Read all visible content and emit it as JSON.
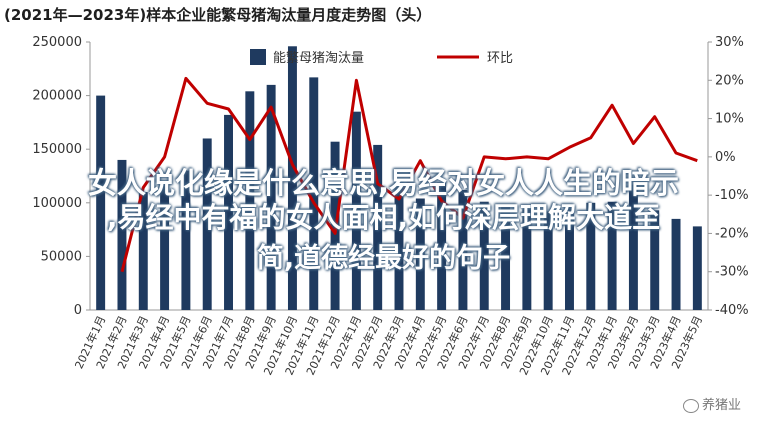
{
  "chart_data": {
    "type": "bar+line",
    "title": "(2021年—2023年)样本企业能繁母猪淘汰量月度走势图（头）",
    "categories": [
      "2021年1月",
      "2021年2月",
      "2021年3月",
      "2021年4月",
      "2021年5月",
      "2021年6月",
      "2021年7月",
      "2021年8月",
      "2021年9月",
      "2021年10月",
      "2021年11月",
      "2021年12月",
      "2022年1月",
      "2022年2月",
      "2022年3月",
      "2022年4月",
      "2022年5月",
      "2022年6月",
      "2022年7月",
      "2022年8月",
      "2022年9月",
      "2022年10月",
      "2022年11月",
      "2022年12月",
      "2023年1月",
      "2023年2月",
      "2023年3月",
      "2023年4月",
      "2023年5月"
    ],
    "series": [
      {
        "name": "能繁母猪淘汰量",
        "axis": "left",
        "color": "#1f3a5f",
        "values": [
          200000,
          140000,
          110000,
          118000,
          130000,
          160000,
          182000,
          204000,
          210000,
          246000,
          217000,
          157000,
          185000,
          154000,
          120000,
          104000,
          119000,
          112000,
          101000,
          98000,
          94000,
          92000,
          96000,
          100000,
          101000,
          117000,
          93000,
          85000,
          78000
        ]
      },
      {
        "name": "环比",
        "axis": "right",
        "color": "#c00000",
        "values": [
          null,
          -30,
          -8,
          0,
          20.5,
          14,
          12.5,
          4.5,
          13,
          -2,
          -12,
          -20,
          20,
          -7,
          -11,
          -1,
          -11.5,
          -16,
          0,
          -0.5,
          0,
          -0.5,
          2.5,
          5,
          13.5,
          3.5,
          10.5,
          1,
          -1
        ]
      }
    ],
    "y_left": {
      "min": 0,
      "max": 250000,
      "ticks": [
        0,
        50000,
        100000,
        150000,
        200000,
        250000
      ]
    },
    "y_right": {
      "min": -40,
      "max": 30,
      "ticks": [
        "-40%",
        "-30%",
        "-20%",
        "-10%",
        "0%",
        "10%",
        "20%",
        "30%"
      ]
    },
    "legend": "top-center"
  },
  "overlay_lines": [
    "女人说化缘是什么意思,易经对女人人生的暗示",
    ",易经中有福的女人面相,如何深层理解大道至",
    "简,道德经最好的句子"
  ],
  "watermark": "养猪业"
}
